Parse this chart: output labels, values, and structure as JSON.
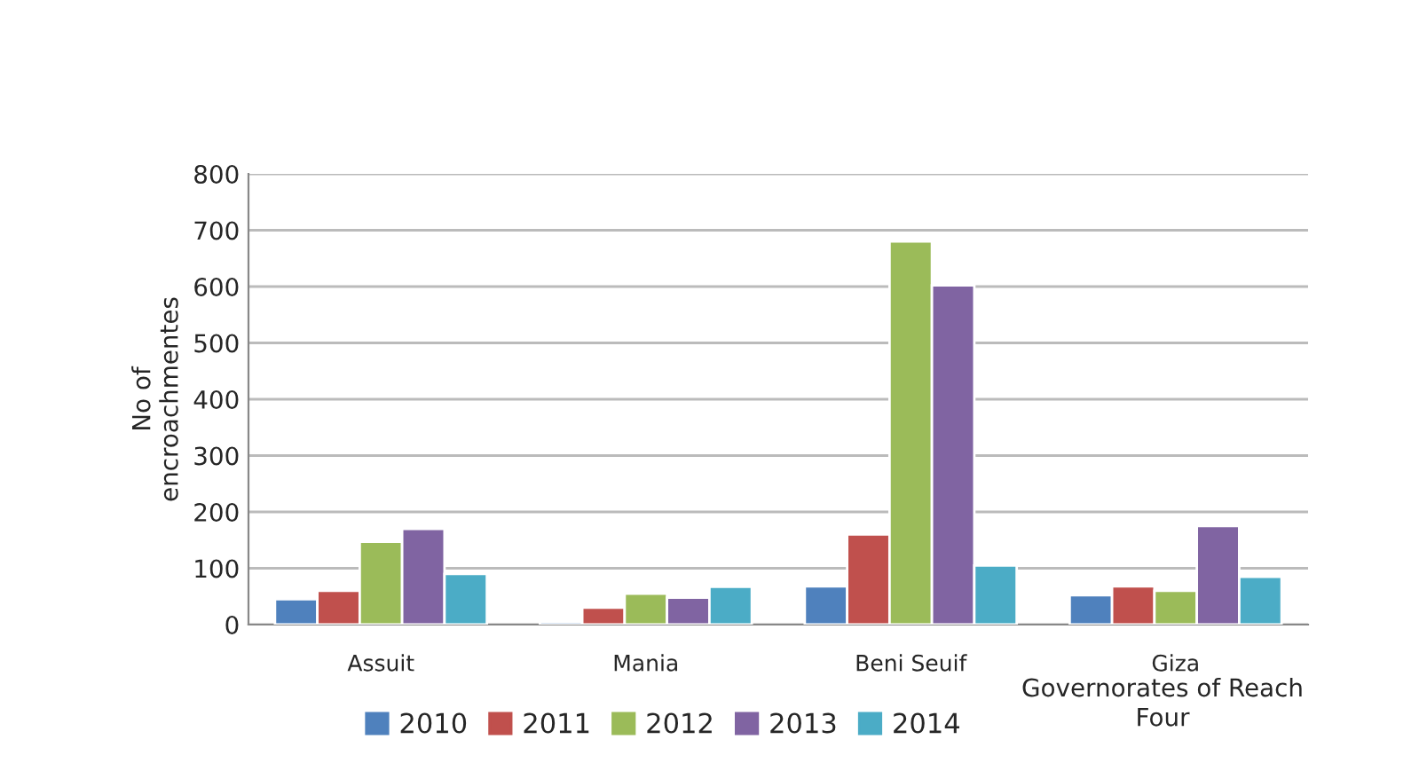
{
  "chart_data": {
    "type": "bar",
    "ylabel": "No of\nencroachmentes",
    "xlabel": "Governorates of Reach\nFour",
    "categories": [
      "Assuit",
      "Mania",
      "Beni Seuif",
      "Giza"
    ],
    "series": [
      {
        "name": "2010",
        "color": "#4f81bd",
        "values": [
          45,
          5,
          68,
          52
        ]
      },
      {
        "name": "2011",
        "color": "#c0504d",
        "values": [
          60,
          30,
          160,
          68
        ]
      },
      {
        "name": "2012",
        "color": "#9bbb59",
        "values": [
          147,
          55,
          680,
          60
        ]
      },
      {
        "name": "2013",
        "color": "#8064a2",
        "values": [
          170,
          48,
          602,
          175
        ]
      },
      {
        "name": "2014",
        "color": "#4bacc6",
        "values": [
          90,
          67,
          105,
          85
        ]
      }
    ],
    "ylim": [
      0,
      800
    ],
    "yticks": [
      0,
      100,
      200,
      300,
      400,
      500,
      600,
      700,
      800
    ],
    "grid": "y",
    "legend": "bottom"
  }
}
